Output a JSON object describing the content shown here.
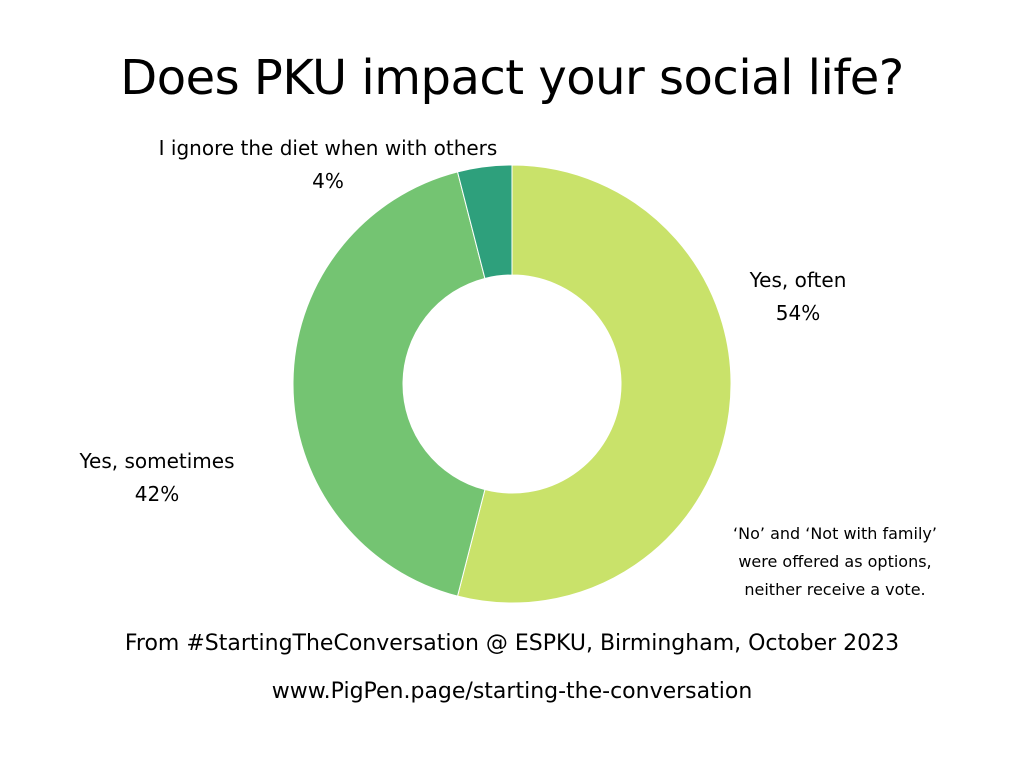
{
  "chart_data": {
    "type": "pie",
    "donut": true,
    "title": "Does PKU impact your social life?",
    "unit": "%",
    "slices": [
      {
        "label": "Yes, often",
        "value": 54,
        "value_label": "54%",
        "color": "#c9e26a"
      },
      {
        "label": "Yes, sometimes",
        "value": 42,
        "value_label": "42%",
        "color": "#74c472"
      },
      {
        "label": "I ignore the diet when with others",
        "value": 4,
        "value_label": "4%",
        "color": "#2ea07c"
      }
    ],
    "note": [
      "‘No’ and ‘Not with family’",
      "were offered as options,",
      "neither receive a vote."
    ],
    "legend": "none"
  },
  "footer": {
    "source": "From #StartingTheConversation @ ESPKU, Birmingham, October 2023",
    "url": "www.PigPen.page/starting-the-conversation"
  }
}
